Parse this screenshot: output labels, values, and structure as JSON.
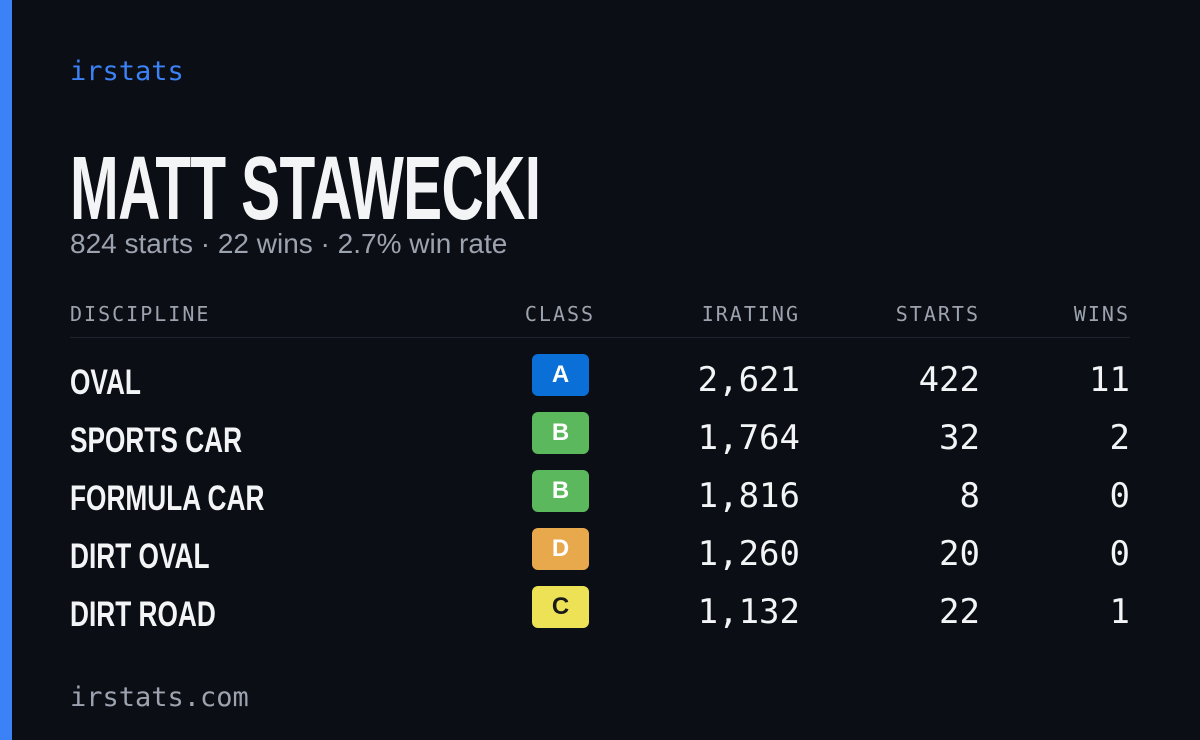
{
  "brand": "irstats",
  "header": {
    "title": "MATT STAWECKI",
    "subtitle": "824 starts · 22 wins · 2.7% win rate"
  },
  "table": {
    "columns": [
      "DISCIPLINE",
      "CLASS",
      "IRATING",
      "STARTS",
      "WINS"
    ],
    "rows": [
      {
        "discipline": "OVAL",
        "class": "A",
        "class_color": "#0a6fd6",
        "class_text_color": "#ffffff",
        "irating": "2,621",
        "starts": 422,
        "wins": 11
      },
      {
        "discipline": "SPORTS CAR",
        "class": "B",
        "class_color": "#5cb85c",
        "class_text_color": "#ffffff",
        "irating": "1,764",
        "starts": 32,
        "wins": 2
      },
      {
        "discipline": "FORMULA CAR",
        "class": "B",
        "class_color": "#5cb85c",
        "class_text_color": "#ffffff",
        "irating": "1,816",
        "starts": 8,
        "wins": 0
      },
      {
        "discipline": "DIRT OVAL",
        "class": "D",
        "class_color": "#e8a84c",
        "class_text_color": "#ffffff",
        "irating": "1,260",
        "starts": 20,
        "wins": 0
      },
      {
        "discipline": "DIRT ROAD",
        "class": "C",
        "class_color": "#ede255",
        "class_text_color": "#1a1a1a",
        "irating": "1,132",
        "starts": 22,
        "wins": 1
      }
    ]
  },
  "footer": "irstats.com"
}
